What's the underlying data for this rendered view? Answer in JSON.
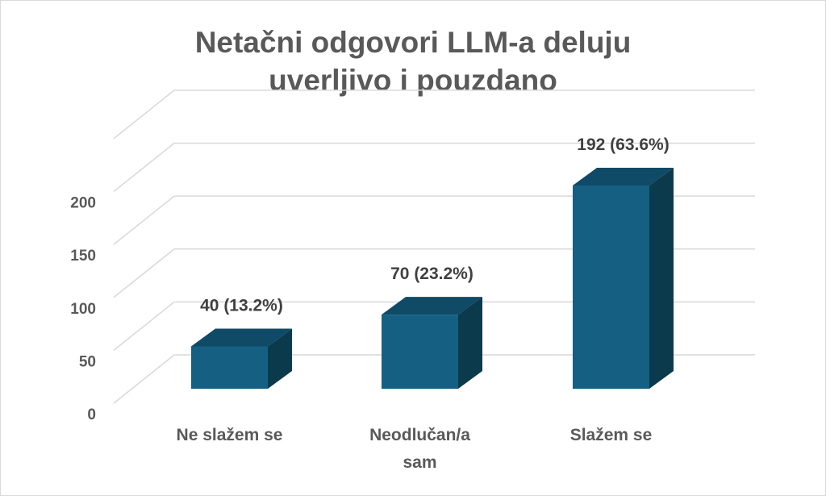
{
  "chart_data": {
    "type": "bar",
    "title_lines": [
      "Netačni odgovori LLM-a deluju",
      "uverljivo i pouzdano"
    ],
    "categories": [
      [
        "Ne slažem se"
      ],
      [
        "Neodlučan/a",
        "sam"
      ],
      [
        "Slažem se"
      ]
    ],
    "values": [
      40,
      70,
      192
    ],
    "data_labels": [
      "40 (13.2%)",
      "70 (23.2%)",
      "192 (63.6%)"
    ],
    "yticks": [
      0,
      50,
      100,
      150,
      200
    ],
    "ylim": [
      0,
      200
    ],
    "xlabel": "",
    "ylabel": "",
    "grid": true,
    "colors": {
      "front": "#156082",
      "top": "#0f4a66",
      "side": "#0c3a4d",
      "grid": "#d9d9d9"
    }
  }
}
